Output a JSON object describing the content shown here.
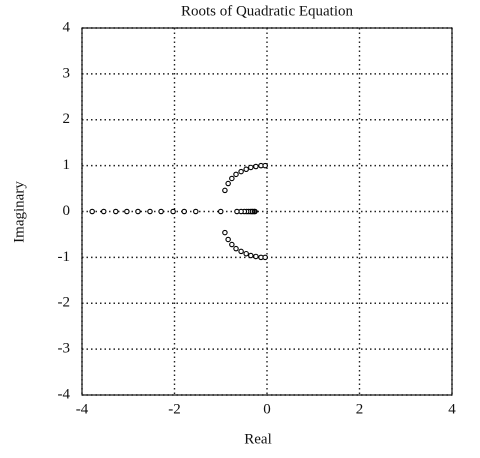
{
  "chart_data": {
    "type": "scatter",
    "title": "Roots of Quadratic Equation",
    "x_label": "Real",
    "y_label": "Imaginary",
    "xlim": [
      -4,
      4
    ],
    "ylim": [
      -4,
      4
    ],
    "xticks": [
      -4,
      -2,
      0,
      2,
      4
    ],
    "yticks": [
      -4,
      -3,
      -2,
      -1,
      0,
      1,
      2,
      3,
      4
    ],
    "grid": true,
    "series": [
      {
        "color": "#000000",
        "x": [
          -3.78,
          -3.53,
          -3.27,
          -3.03,
          -2.79,
          -2.53,
          -2.29,
          -2.03,
          -1.79,
          -1.54,
          -1.0,
          -0.26,
          -0.28,
          -0.31,
          -0.33,
          -0.36,
          -0.4,
          -0.44,
          -0.49,
          -0.56,
          -0.65,
          -0.91,
          -0.84,
          -0.76,
          -0.67,
          -0.56,
          -0.45,
          -0.35,
          -0.24,
          -0.13,
          -0.04,
          -0.91,
          -0.84,
          -0.76,
          -0.67,
          -0.56,
          -0.45,
          -0.35,
          -0.24,
          -0.13,
          -0.04
        ],
        "y": [
          0,
          0,
          0,
          0,
          0,
          0,
          0,
          0,
          0,
          0,
          0,
          0,
          0,
          0,
          0,
          0,
          0,
          0,
          0,
          0,
          0,
          0.46,
          0.61,
          0.72,
          0.81,
          0.87,
          0.92,
          0.96,
          0.98,
          1.0,
          1.0,
          -0.46,
          -0.61,
          -0.72,
          -0.81,
          -0.87,
          -0.92,
          -0.96,
          -0.98,
          -1.0,
          -1.0
        ]
      }
    ]
  }
}
